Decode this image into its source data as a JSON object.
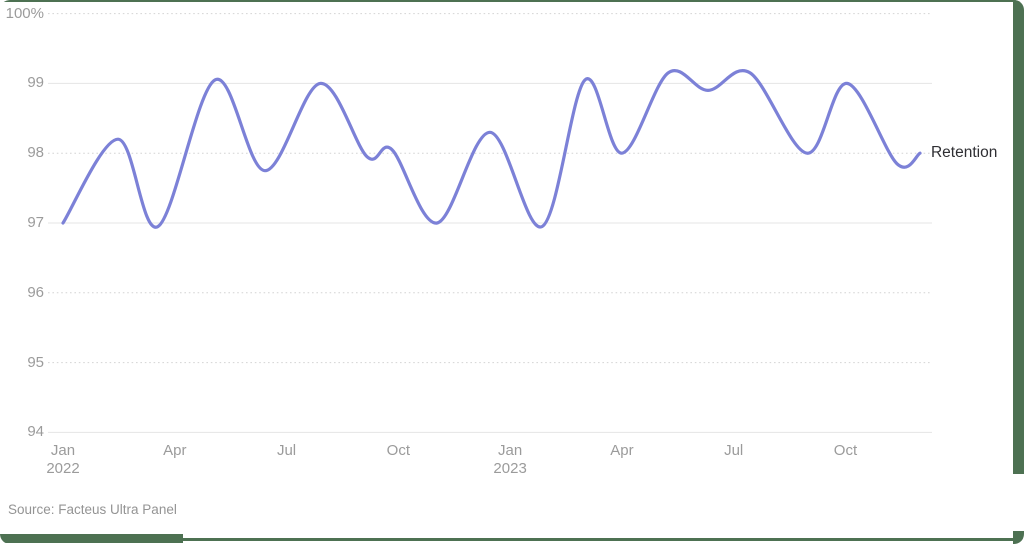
{
  "page": {
    "source_note": "Source: Facteus Ultra Panel"
  },
  "colors": {
    "line": "#7c81d7",
    "grid_solid": "#e4e4e4",
    "grid_dotted": "#d4d4d4",
    "axis_text": "#9b9b9b",
    "series_label_text": "#2f2f33",
    "frame_green": "#4d7152"
  },
  "chart_data": {
    "type": "line",
    "title": "",
    "xlabel": "",
    "ylabel": "",
    "y_unit": "%",
    "ylim": [
      94,
      100
    ],
    "grid": true,
    "legend_position": "right-end-of-line",
    "x_unit": "months since Jan 2022",
    "y_ticks": [
      {
        "value": 100,
        "label": "100%",
        "style": "dotted"
      },
      {
        "value": 99,
        "label": "99",
        "style": "solid"
      },
      {
        "value": 98,
        "label": "98",
        "style": "dotted"
      },
      {
        "value": 97,
        "label": "97",
        "style": "solid"
      },
      {
        "value": 96,
        "label": "96",
        "style": "dotted"
      },
      {
        "value": 95,
        "label": "95",
        "style": "dotted"
      },
      {
        "value": 94,
        "label": "94",
        "style": "solid"
      }
    ],
    "x_ticks": [
      {
        "m": 0,
        "line1": "Jan",
        "line2": "2022"
      },
      {
        "m": 3,
        "line1": "Apr"
      },
      {
        "m": 6,
        "line1": "Jul"
      },
      {
        "m": 9,
        "line1": "Oct"
      },
      {
        "m": 12,
        "line1": "Jan",
        "line2": "2023"
      },
      {
        "m": 15,
        "line1": "Apr"
      },
      {
        "m": 18,
        "line1": "Jul"
      },
      {
        "m": 21,
        "line1": "Oct"
      }
    ],
    "series": [
      {
        "name": "Retention",
        "color": "#7c81d7",
        "points": [
          {
            "m": 0.0,
            "v": 97.0
          },
          {
            "m": 1.48,
            "v": 98.2
          },
          {
            "m": 2.55,
            "v": 96.95
          },
          {
            "m": 4.08,
            "v": 99.05
          },
          {
            "m": 5.42,
            "v": 97.75
          },
          {
            "m": 6.9,
            "v": 99.0
          },
          {
            "m": 8.16,
            "v": 97.95
          },
          {
            "m": 8.83,
            "v": 98.05
          },
          {
            "m": 10.04,
            "v": 97.0
          },
          {
            "m": 11.46,
            "v": 98.3
          },
          {
            "m": 12.86,
            "v": 96.95
          },
          {
            "m": 14.01,
            "v": 99.05
          },
          {
            "m": 15.0,
            "v": 98.0
          },
          {
            "m": 16.24,
            "v": 99.15
          },
          {
            "m": 17.31,
            "v": 98.9
          },
          {
            "m": 18.44,
            "v": 99.15
          },
          {
            "m": 19.97,
            "v": 98.0
          },
          {
            "m": 21.04,
            "v": 99.0
          },
          {
            "m": 22.38,
            "v": 97.85
          },
          {
            "m": 23.0,
            "v": 98.0
          }
        ]
      }
    ]
  }
}
